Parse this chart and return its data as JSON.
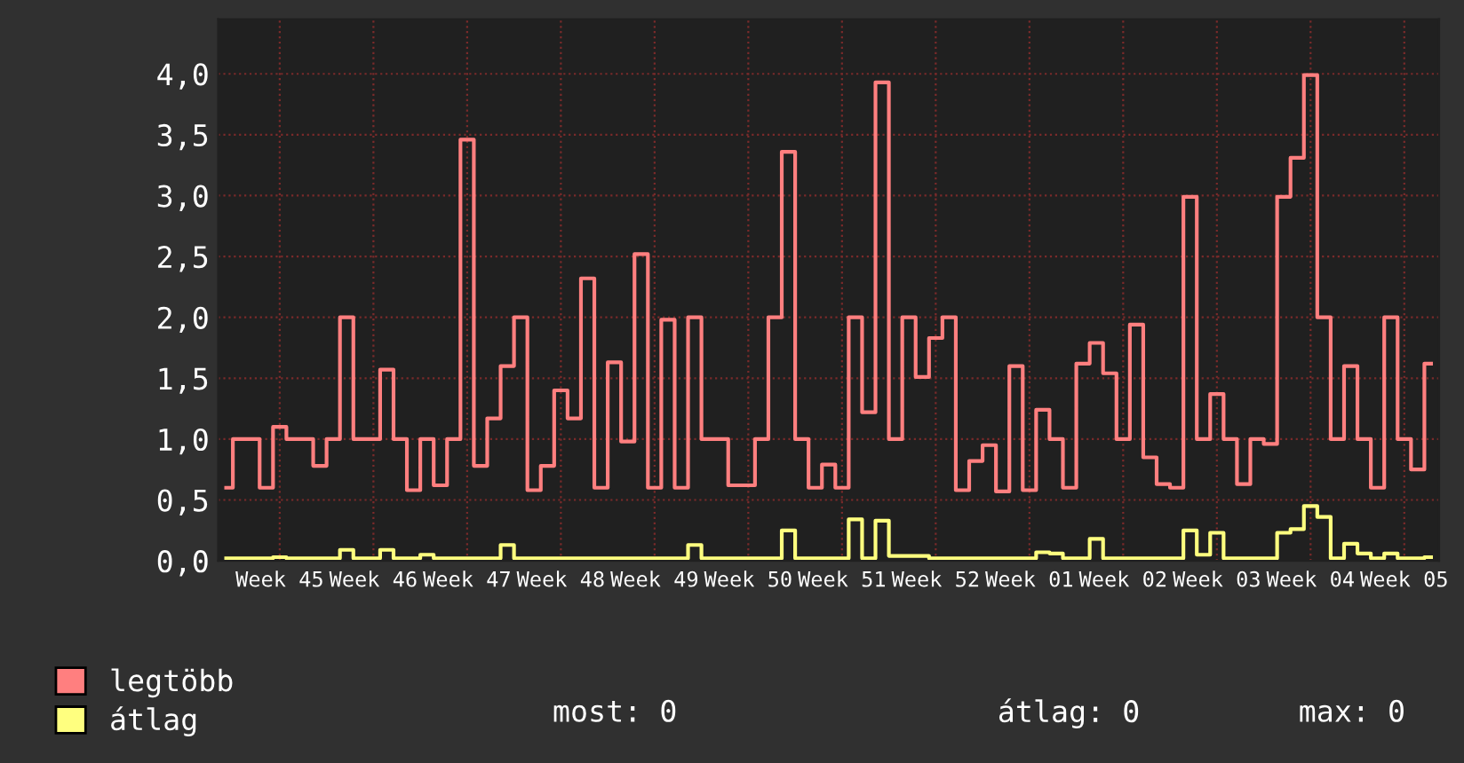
{
  "chart_data": {
    "type": "step",
    "categories": [
      null,
      null,
      null,
      null,
      "Week 45",
      null,
      null,
      null,
      null,
      null,
      null,
      "Week 46",
      null,
      null,
      null,
      null,
      null,
      null,
      "Week 47",
      null,
      null,
      null,
      null,
      null,
      null,
      "Week 48",
      null,
      null,
      null,
      null,
      null,
      null,
      "Week 49",
      null,
      null,
      null,
      null,
      null,
      null,
      "Week 50",
      null,
      null,
      null,
      null,
      null,
      null,
      "Week 51",
      null,
      null,
      null,
      null,
      null,
      null,
      "Week 52",
      null,
      null,
      null,
      null,
      null,
      null,
      "Week 01",
      null,
      null,
      null,
      null,
      null,
      null,
      "Week 02",
      null,
      null,
      null,
      null,
      null,
      null,
      "Week 03",
      null,
      null,
      null,
      null,
      null,
      null,
      "Week 04",
      null,
      null,
      null,
      null,
      null,
      null,
      "Week 05",
      null,
      null
    ],
    "series": [
      {
        "name": "legtöbb",
        "color": "#ff7f7f",
        "values": [
          0.6,
          1.0,
          1.0,
          0.6,
          1.1,
          1.0,
          1.0,
          0.78,
          1.0,
          2.0,
          1.0,
          1.0,
          1.57,
          1.0,
          0.58,
          1.0,
          0.62,
          1.0,
          3.46,
          0.78,
          1.17,
          1.6,
          2.0,
          0.58,
          0.78,
          1.4,
          1.17,
          2.32,
          0.6,
          1.63,
          0.98,
          2.52,
          0.6,
          1.98,
          0.6,
          2.0,
          1.0,
          1.0,
          0.62,
          0.62,
          1.0,
          2.0,
          3.36,
          1.0,
          0.6,
          0.79,
          0.6,
          2.0,
          1.22,
          3.93,
          1.0,
          2.0,
          1.51,
          1.83,
          2.0,
          0.58,
          0.82,
          0.95,
          0.57,
          1.6,
          0.58,
          1.24,
          1.0,
          0.6,
          1.62,
          1.79,
          1.54,
          1.0,
          1.94,
          0.85,
          0.63,
          0.6,
          2.99,
          1.0,
          1.37,
          1.0,
          0.63,
          1.0,
          0.96,
          2.99,
          3.31,
          3.99,
          2.0,
          1.0,
          1.6,
          1.0,
          0.6,
          2.0,
          1.0,
          0.75,
          1.62
        ]
      },
      {
        "name": "átlag",
        "color": "#ffff7f",
        "values": [
          0.02,
          0.02,
          0.02,
          0.02,
          0.03,
          0.02,
          0.02,
          0.02,
          0.02,
          0.09,
          0.02,
          0.02,
          0.09,
          0.02,
          0.02,
          0.05,
          0.02,
          0.02,
          0.02,
          0.02,
          0.02,
          0.13,
          0.02,
          0.02,
          0.02,
          0.02,
          0.02,
          0.02,
          0.02,
          0.02,
          0.02,
          0.02,
          0.02,
          0.02,
          0.02,
          0.13,
          0.02,
          0.02,
          0.02,
          0.02,
          0.02,
          0.02,
          0.25,
          0.02,
          0.02,
          0.02,
          0.02,
          0.34,
          0.02,
          0.33,
          0.04,
          0.04,
          0.04,
          0.02,
          0.02,
          0.02,
          0.02,
          0.02,
          0.02,
          0.02,
          0.02,
          0.07,
          0.06,
          0.02,
          0.02,
          0.18,
          0.02,
          0.02,
          0.02,
          0.02,
          0.02,
          0.02,
          0.25,
          0.05,
          0.23,
          0.02,
          0.02,
          0.02,
          0.02,
          0.23,
          0.26,
          0.45,
          0.36,
          0.02,
          0.14,
          0.06,
          0.02,
          0.06,
          0.02,
          0.02,
          0.03
        ]
      }
    ],
    "ylim": [
      0,
      4.45
    ],
    "yticks": [
      {
        "value": 0,
        "label": "0,0"
      },
      {
        "value": 0.5,
        "label": "0,5"
      },
      {
        "value": 1,
        "label": "1,0"
      },
      {
        "value": 1.5,
        "label": "1,5"
      },
      {
        "value": 2,
        "label": "2,0"
      },
      {
        "value": 2.5,
        "label": "2,5"
      },
      {
        "value": 3,
        "label": "3,0"
      },
      {
        "value": 3.5,
        "label": "3,5"
      },
      {
        "value": 4,
        "label": "4,0"
      }
    ],
    "grid": true,
    "legend": "bottom left",
    "annotations": [
      "most: 0",
      "átlag: 0",
      "max: 0"
    ]
  }
}
